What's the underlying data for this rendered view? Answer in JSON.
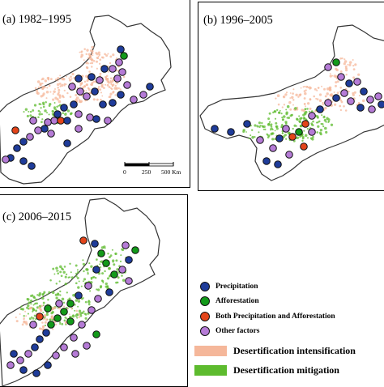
{
  "panels": [
    {
      "label": "(a) 1982–1995"
    },
    {
      "label": "(b) 1996–2005"
    },
    {
      "label": "(c) 2006–2015"
    }
  ],
  "scale_bar": {
    "ticks": [
      "0",
      "250",
      "500 Km"
    ]
  },
  "legend": {
    "precipitation": "Precipitation",
    "afforestation": "Afforestation",
    "both": "Both Precipitation and Afforestation",
    "other": "Other factors",
    "intensification": "Desertification intensification",
    "mitigation": "Desertification mitigation"
  },
  "colors": {
    "precipitation": "#1f3c9a",
    "afforestation": "#139a1a",
    "both": "#e3441a",
    "other": "#b57bd6",
    "intensification": "#f5b79a",
    "mitigation": "#5dbb2e"
  }
}
